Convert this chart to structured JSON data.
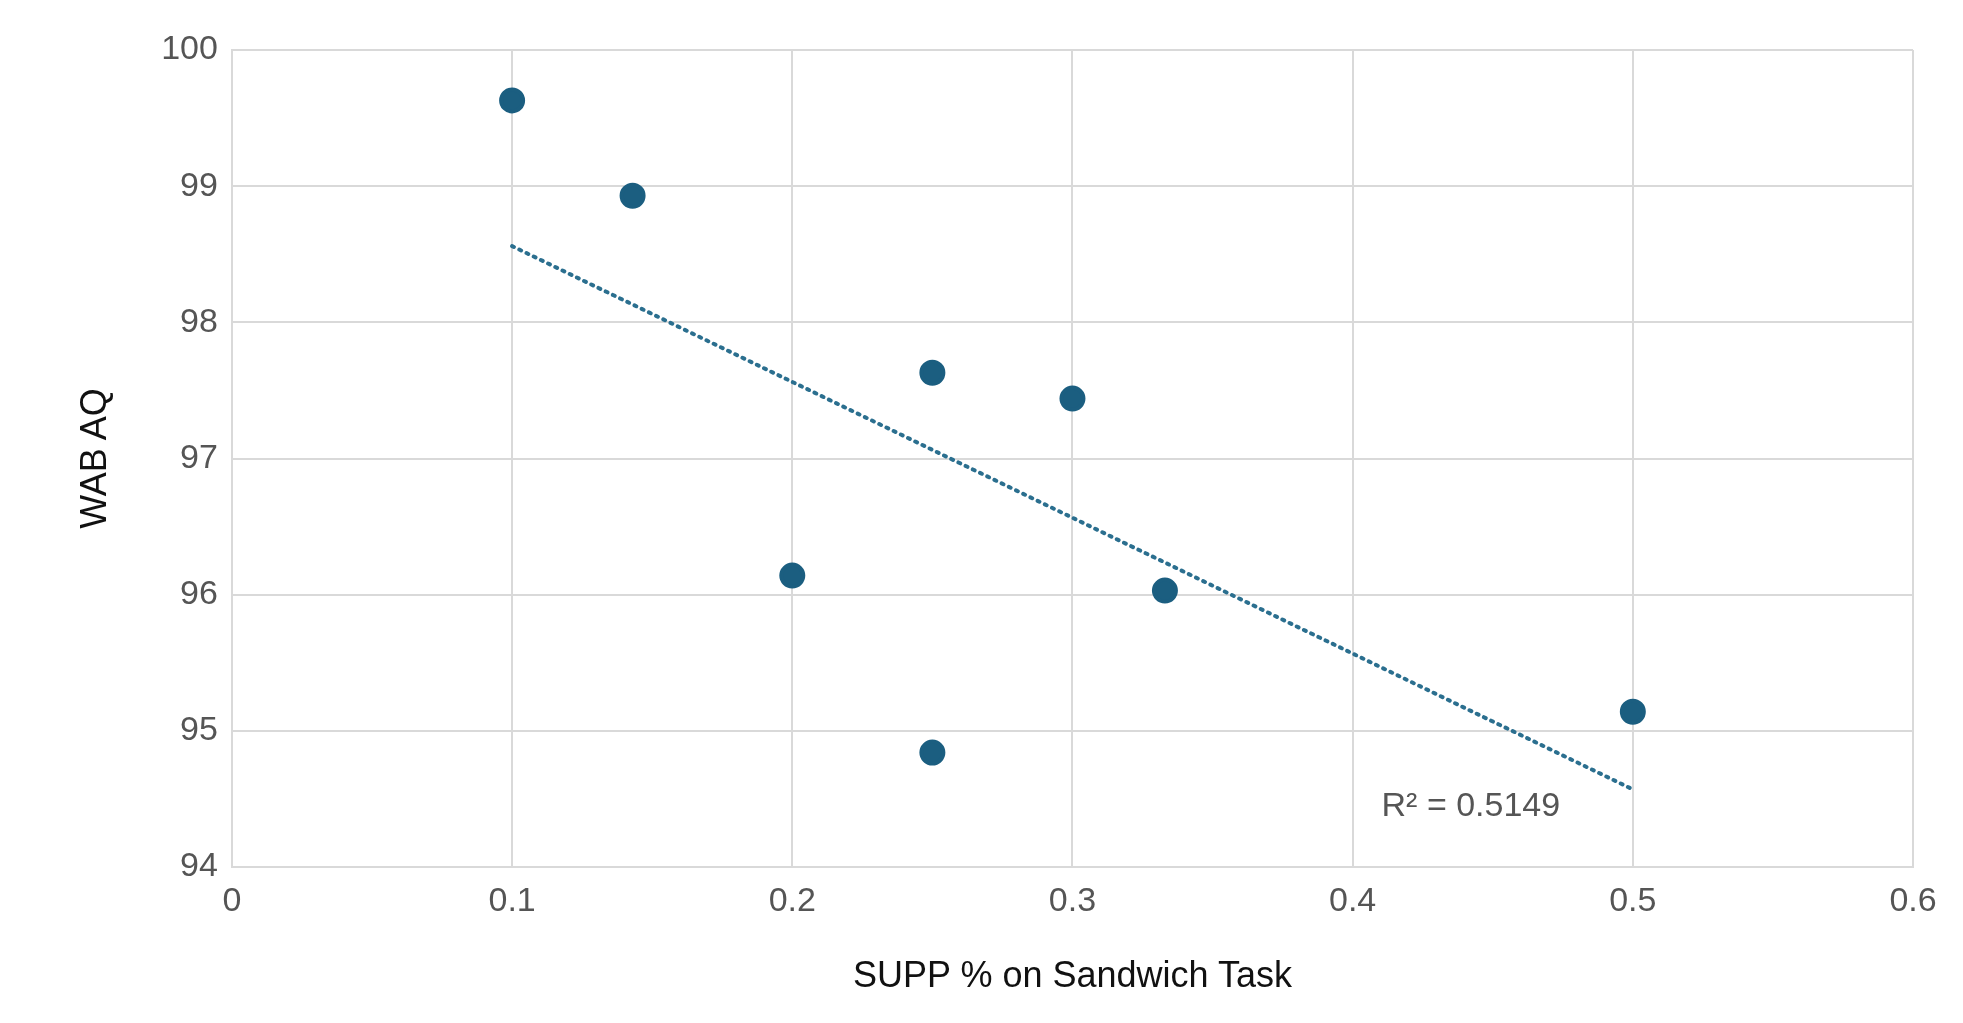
{
  "chart_data": {
    "type": "scatter",
    "xlabel": "SUPP % on Sandwich Task",
    "ylabel": "WAB AQ",
    "xlim": [
      0,
      0.6
    ],
    "xticks": [
      0,
      0.1,
      0.2,
      0.3,
      0.4,
      0.5,
      0.6
    ],
    "ylim": [
      94,
      100
    ],
    "yticks": [
      94,
      95,
      96,
      97,
      98,
      99,
      100
    ],
    "grid": true,
    "series": [
      {
        "color": "#1b5e80",
        "marker": "circle",
        "x": [
          0.1,
          0.143,
          0.25,
          0.3,
          0.2,
          0.333,
          0.25,
          0.5
        ],
        "values": [
          99.63,
          98.93,
          97.63,
          97.44,
          96.14,
          96.03,
          94.84,
          95.14
        ]
      },
      {
        "type": "line",
        "color": "#2b6f8f",
        "marker": "none",
        "line_style": "dotted",
        "x": [
          0.1,
          0.5
        ],
        "values": [
          98.56,
          94.57
        ]
      }
    ],
    "annotations": [
      "R² = 0.5149"
    ]
  }
}
